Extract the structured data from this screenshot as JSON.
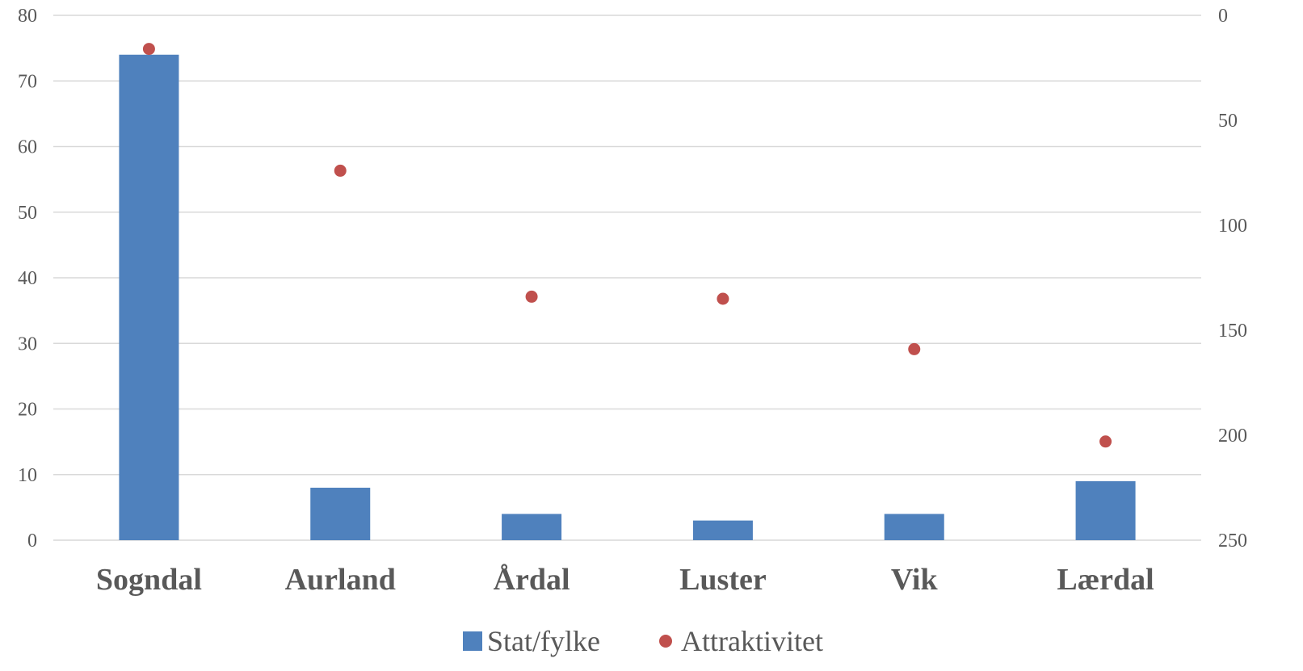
{
  "chart_data": {
    "type": "bar",
    "categories": [
      "Sogndal",
      "Aurland",
      "Årdal",
      "Luster",
      "Vik",
      "Lærdal"
    ],
    "series": [
      {
        "name": "Stat/fylke",
        "type": "bar",
        "axis": "left",
        "color": "#4f81bd",
        "values": [
          74,
          8,
          4,
          3,
          4,
          9
        ]
      },
      {
        "name": "Attraktivitet",
        "type": "scatter",
        "axis": "right",
        "color": "#c0504d",
        "values": [
          16,
          74,
          134,
          135,
          159,
          203
        ]
      }
    ],
    "y_left": {
      "min": 0,
      "max": 80,
      "ticks": [
        "0",
        "10",
        "20",
        "30",
        "40",
        "50",
        "60",
        "70",
        "80"
      ]
    },
    "y_right": {
      "min": 0,
      "max": 250,
      "reversed": true,
      "ticks": [
        "0",
        "50",
        "100",
        "150",
        "200",
        "250"
      ]
    },
    "grid": true,
    "legend_position": "bottom"
  }
}
